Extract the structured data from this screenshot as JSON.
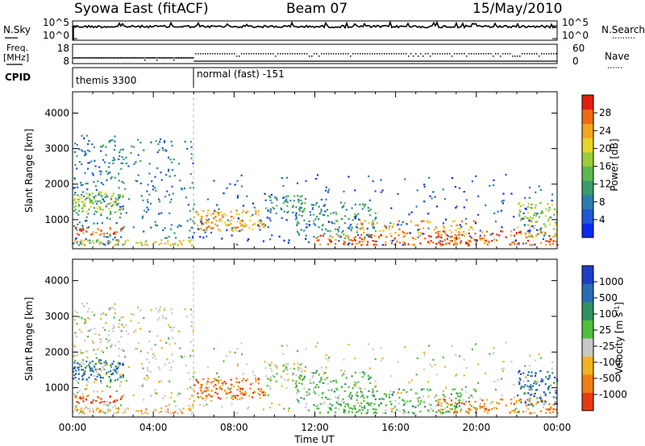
{
  "header": {
    "station": "Syowa East (fitACF)",
    "beam": "Beam 07",
    "date": "15/May/2010"
  },
  "top_panels": {
    "nsky_label": "N.Sky",
    "nsky_ticks": [
      "10^5",
      "10^0"
    ],
    "nsearch_label": "N.Search",
    "nsearch_ticks": [
      "10^5",
      "10^0"
    ],
    "freq_label_1": "Freq.",
    "freq_label_2": "[MHz]",
    "freq_ticks": [
      "18",
      "8"
    ],
    "nave_label": "Nave",
    "nave_ticks": [
      "60",
      "0"
    ],
    "cpid_label": "CPID",
    "cpid_modes": [
      "themis 3300",
      "normal (fast) -151"
    ]
  },
  "chart_data": [
    {
      "type": "heatmap",
      "panel": "power",
      "ylabel": "Slant Range [km]",
      "xlabel": "",
      "yticks": [
        "1000",
        "2000",
        "3000",
        "4000"
      ],
      "ylim": [
        180,
        4600
      ],
      "xlim": [
        0,
        24
      ],
      "colorbar": {
        "label": "Power [dB]",
        "ticks": [
          "4",
          "8",
          "12",
          "16",
          "20",
          "24",
          "28"
        ],
        "range": [
          0,
          30
        ],
        "colors": [
          "#0b2cf0",
          "#1f57d6",
          "#2a7fb0",
          "#3a9c6a",
          "#5bb84d",
          "#9ccc3a",
          "#e8d428",
          "#f4a51c",
          "#f06a14",
          "#e21e10"
        ]
      }
    },
    {
      "type": "heatmap",
      "panel": "velocity",
      "ylabel": "Slant Range [km]",
      "xlabel": "Time UT",
      "yticks": [
        "1000",
        "2000",
        "3000",
        "4000"
      ],
      "xticks": [
        "00:00",
        "04:00",
        "08:00",
        "12:00",
        "16:00",
        "20:00",
        "00:00"
      ],
      "ylim": [
        180,
        4600
      ],
      "xlim": [
        0,
        24
      ],
      "colorbar": {
        "label": "Velocity [m s^-1]",
        "ticks": [
          "1000",
          "500",
          "100",
          "25",
          "-25",
          "-100",
          "-500",
          "-1000"
        ],
        "colors": [
          "#1c3fc8",
          "#2a6cb4",
          "#2f9060",
          "#4fbf3c",
          "#c8c8c8",
          "#f2b41e",
          "#f07f12",
          "#e83a0e"
        ]
      }
    }
  ]
}
